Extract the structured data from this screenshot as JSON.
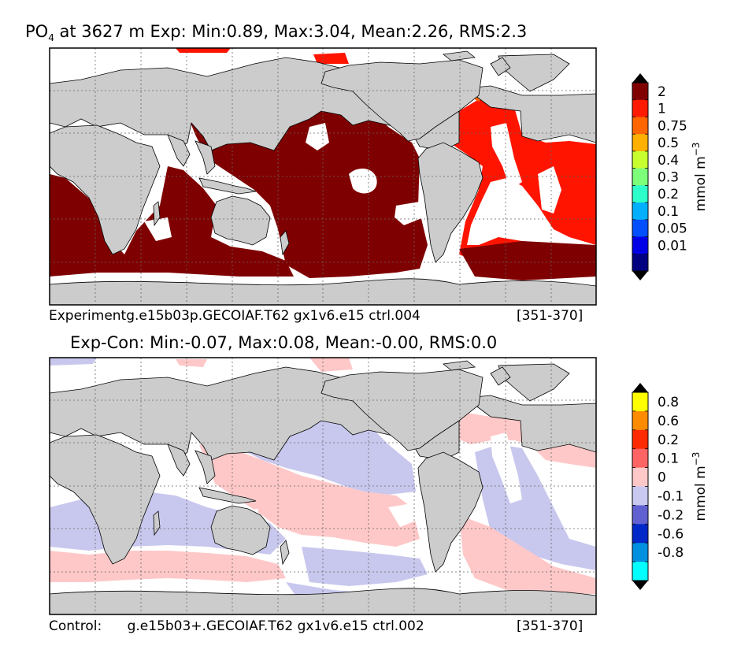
{
  "chart_data": [
    {
      "type": "heatmap",
      "title_prefix": "PO",
      "title_sub": "4",
      "title_rest": " at 3627 m Exp: Min:0.89, Max:3.04, Mean:2.26, RMS:2.3",
      "caption_left": "Experimentg.e15b03p.GECOIAF.T62 gx1v6.e15 ctrl.004",
      "caption_right": "[351-370]",
      "colorbar": {
        "label": "mmol m",
        "label_exp": "−3",
        "extend": "both",
        "ticks": [
          "2",
          "1",
          "0.75",
          "0.5",
          "0.4",
          "0.3",
          "0.2",
          "0.1",
          "0.05",
          "0.01"
        ],
        "colors": [
          "#800000",
          "#ff1a00",
          "#ff6600",
          "#ffb000",
          "#c8ff2f",
          "#7dff7a",
          "#2dffca",
          "#00b0ff",
          "#0050ff",
          "#0000e6",
          "#000080"
        ]
      }
    },
    {
      "type": "heatmap",
      "title": "Exp-Con: Min:-0.07, Max:0.08, Mean:-0.00, RMS:0.0",
      "caption_left": "Control:      g.e15b03+.GECOIAF.T62 gx1v6.e15 ctrl.002",
      "caption_right": "[351-370]",
      "colorbar": {
        "label": "mmol m",
        "label_exp": "−3",
        "extend": "both",
        "ticks": [
          "0.8",
          "0.6",
          "0.2",
          "0.1",
          "0",
          "-0.1",
          "-0.2",
          "-0.6",
          "-0.8"
        ],
        "colors": [
          "#ffff00",
          "#ff8c00",
          "#ff2a00",
          "#ff6464",
          "#ffc8c8",
          "#c8c8f0",
          "#6060d0",
          "#0028c8",
          "#0090e0",
          "#00ffff"
        ]
      }
    }
  ]
}
